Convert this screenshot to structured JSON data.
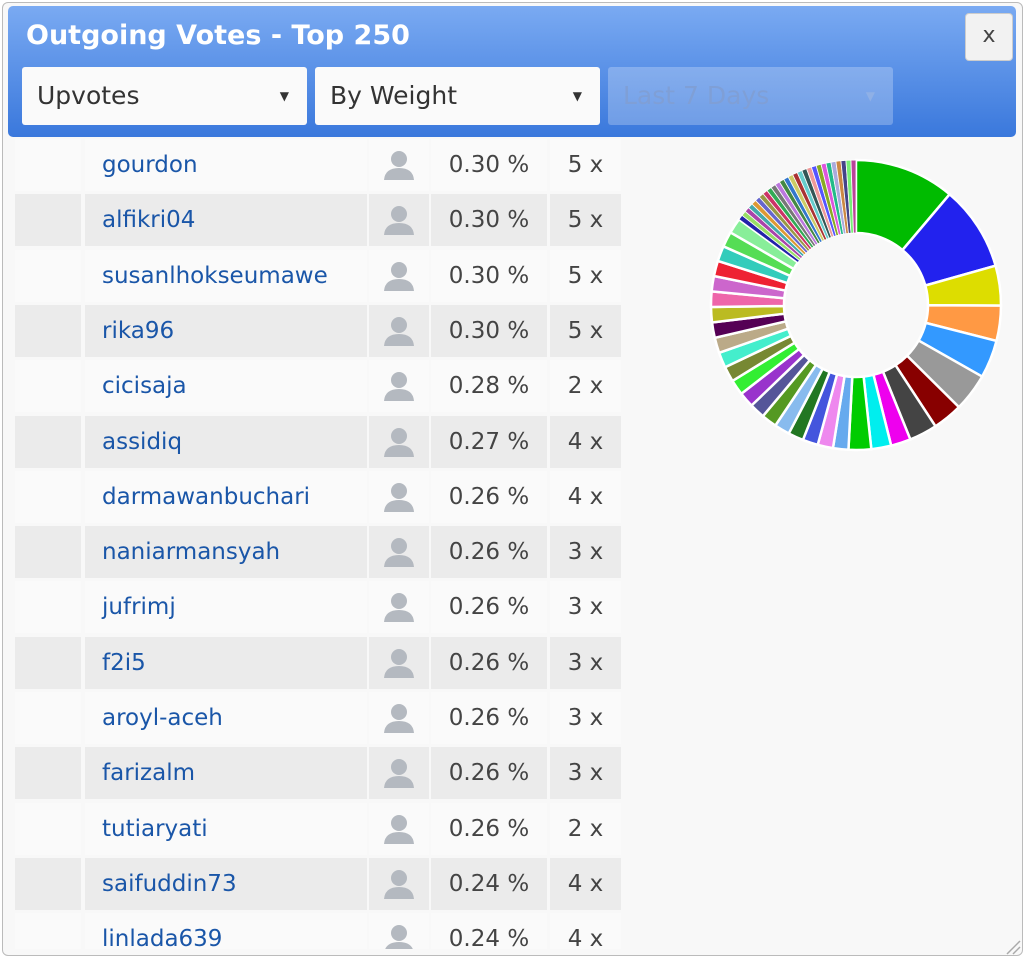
{
  "header": {
    "title": "Outgoing Votes - Top 250",
    "close": "x"
  },
  "filters": [
    "Upvotes",
    "By Weight",
    "Last 7 Days"
  ],
  "table": {
    "rows": [
      [
        "gourdon",
        "0.30 %",
        "5 x"
      ],
      [
        "alfikri04",
        "0.30 %",
        "5 x"
      ],
      [
        "susanlhokseumawe",
        "0.30 %",
        "5 x"
      ],
      [
        "rika96",
        "0.30 %",
        "5 x"
      ],
      [
        "cicisaja",
        "0.28 %",
        "2 x"
      ],
      [
        "assidiq",
        "0.27 %",
        "4 x"
      ],
      [
        "darmawanbuchari",
        "0.26 %",
        "4 x"
      ],
      [
        "naniarmansyah",
        "0.26 %",
        "3 x"
      ],
      [
        "jufrimj",
        "0.26 %",
        "3 x"
      ],
      [
        "f2i5",
        "0.26 %",
        "3 x"
      ],
      [
        "aroyl-aceh",
        "0.26 %",
        "3 x"
      ],
      [
        "farizalm",
        "0.26 %",
        "3 x"
      ],
      [
        "tutiaryati",
        "0.26 %",
        "2 x"
      ],
      [
        "saifuddin73",
        "0.24 %",
        "4 x"
      ],
      [
        "linlada639",
        "0.24 %",
        "4 x"
      ]
    ]
  },
  "chart_data": {
    "type": "donut",
    "slices": [
      {
        "color": "#00bb00",
        "value": 11.1
      },
      {
        "color": "#2222ee",
        "value": 9.4
      },
      {
        "color": "#dddd00",
        "value": 4.4
      },
      {
        "color": "#ff9944",
        "value": 3.9
      },
      {
        "color": "#3399ff",
        "value": 4.2
      },
      {
        "color": "#999999",
        "value": 4.2
      },
      {
        "color": "#880000",
        "value": 3.3
      },
      {
        "color": "#444444",
        "value": 3.1
      },
      {
        "color": "#ee00ee",
        "value": 2.2
      },
      {
        "color": "#00eeee",
        "value": 2.2
      },
      {
        "color": "#00cc00",
        "value": 2.5
      },
      {
        "color": "#66aaee",
        "value": 1.7
      },
      {
        "color": "#ee88ee",
        "value": 1.7
      },
      {
        "color": "#4455dd",
        "value": 1.7
      },
      {
        "color": "#227722",
        "value": 1.7
      },
      {
        "color": "#88bbee",
        "value": 1.7
      },
      {
        "color": "#559922",
        "value": 1.7
      },
      {
        "color": "#555599",
        "value": 1.7
      },
      {
        "color": "#9933cc",
        "value": 1.7
      },
      {
        "color": "#33ee33",
        "value": 1.7
      },
      {
        "color": "#778833",
        "value": 1.7
      },
      {
        "color": "#44eecc",
        "value": 1.7
      },
      {
        "color": "#bbaa88",
        "value": 1.7
      },
      {
        "color": "#550055",
        "value": 1.7
      },
      {
        "color": "#bbbb22",
        "value": 1.7
      },
      {
        "color": "#ee66aa",
        "value": 1.7
      },
      {
        "color": "#cc66cc",
        "value": 1.7
      },
      {
        "color": "#ee2233",
        "value": 1.7
      },
      {
        "color": "#33ccbb",
        "value": 1.7
      },
      {
        "color": "#55dd55",
        "value": 1.7
      },
      {
        "color": "#88ee99",
        "value": 1.7
      },
      {
        "color": "#2222aa",
        "value": 0.55
      },
      {
        "color": "#99dd66",
        "value": 0.55
      },
      {
        "color": "#aa44aa",
        "value": 0.55
      },
      {
        "color": "#44aaaa",
        "value": 0.55
      },
      {
        "color": "#dd9933",
        "value": 0.55
      },
      {
        "color": "#6666cc",
        "value": 0.55
      },
      {
        "color": "#999944",
        "value": 0.55
      },
      {
        "color": "#cc3366",
        "value": 0.55
      },
      {
        "color": "#33aa55",
        "value": 0.55
      },
      {
        "color": "#777777",
        "value": 0.55
      },
      {
        "color": "#bb77dd",
        "value": 0.55
      },
      {
        "color": "#448844",
        "value": 0.55
      },
      {
        "color": "#3377cc",
        "value": 0.55
      },
      {
        "color": "#cccc66",
        "value": 0.55
      },
      {
        "color": "#aa3333",
        "value": 0.55
      },
      {
        "color": "#66cccc",
        "value": 0.55
      },
      {
        "color": "#335555",
        "value": 0.55
      },
      {
        "color": "#ee9999",
        "value": 0.55
      },
      {
        "color": "#5555ff",
        "value": 0.55
      },
      {
        "color": "#88aa22",
        "value": 0.55
      },
      {
        "color": "#dd55dd",
        "value": 0.55
      },
      {
        "color": "#22bb88",
        "value": 0.55
      },
      {
        "color": "#aaaadd",
        "value": 0.55
      },
      {
        "color": "#cc8844",
        "value": 0.55
      },
      {
        "color": "#444488",
        "value": 0.55
      },
      {
        "color": "#77ee77",
        "value": 0.55
      },
      {
        "color": "#bb4499",
        "value": 0.55
      }
    ]
  }
}
